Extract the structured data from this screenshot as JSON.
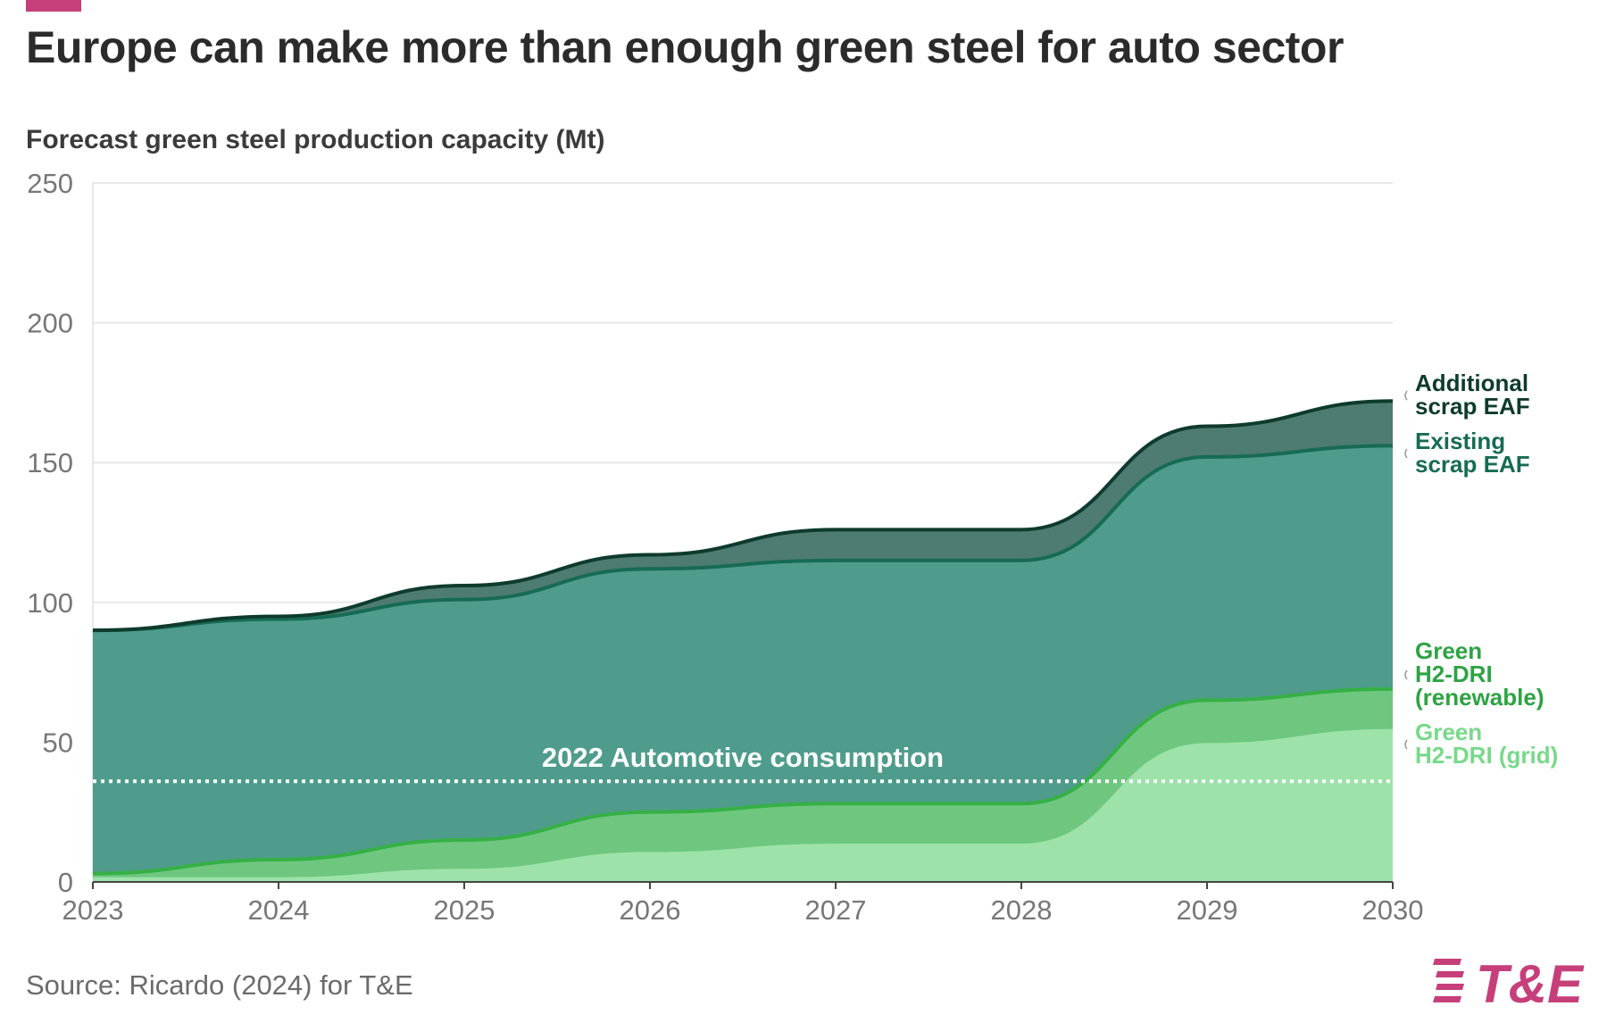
{
  "header": {
    "title": "Europe can make more than enough green steel for auto sector",
    "subtitle": "Forecast green steel production capacity (Mt)"
  },
  "footer": {
    "source": "Source: Ricardo (2024) for T&E",
    "logo_text": "T&E"
  },
  "colors": {
    "brand": "#c63f7a",
    "existing_scrap_eaf": "#4f9c8c",
    "additional_scrap_eaf": "#4e7b72",
    "green_h2_dri_renewable": "#6fc77f",
    "green_h2_dri_grid": "#9de3a9",
    "line_additional": "#0e3b2d",
    "line_existing": "#176b54",
    "line_renewable": "#35b045"
  },
  "chart_data": {
    "type": "area",
    "stacked": true,
    "x": [
      2023,
      2024,
      2025,
      2026,
      2027,
      2028,
      2029,
      2030
    ],
    "ylim": [
      0,
      250
    ],
    "yticks": [
      0,
      50,
      100,
      150,
      200,
      250
    ],
    "grid": true,
    "series": [
      {
        "name": "Green H2-DRI (grid)",
        "key": "grid",
        "label_lines": [
          "Green",
          "H2-DRI (grid)"
        ],
        "values": [
          2,
          2,
          5,
          11,
          14,
          14,
          50,
          55
        ]
      },
      {
        "name": "Green H2-DRI (renewable)",
        "key": "renewable",
        "label_lines": [
          "Green",
          "H2-DRI",
          "(renewable)"
        ],
        "values": [
          1,
          6,
          10,
          14,
          14,
          14,
          15,
          14
        ]
      },
      {
        "name": "Existing scrap EAF",
        "key": "existing",
        "label_lines": [
          "Existing",
          "scrap EAF"
        ],
        "values": [
          87,
          86,
          86,
          87,
          87,
          87,
          87,
          87
        ]
      },
      {
        "name": "Additional scrap EAF",
        "key": "additional",
        "label_lines": [
          "Additional",
          "scrap EAF"
        ],
        "values": [
          0,
          1,
          5,
          5,
          11,
          11,
          11,
          16
        ]
      }
    ],
    "reference_line": {
      "label": "2022 Automotive consumption",
      "value": 36
    }
  }
}
